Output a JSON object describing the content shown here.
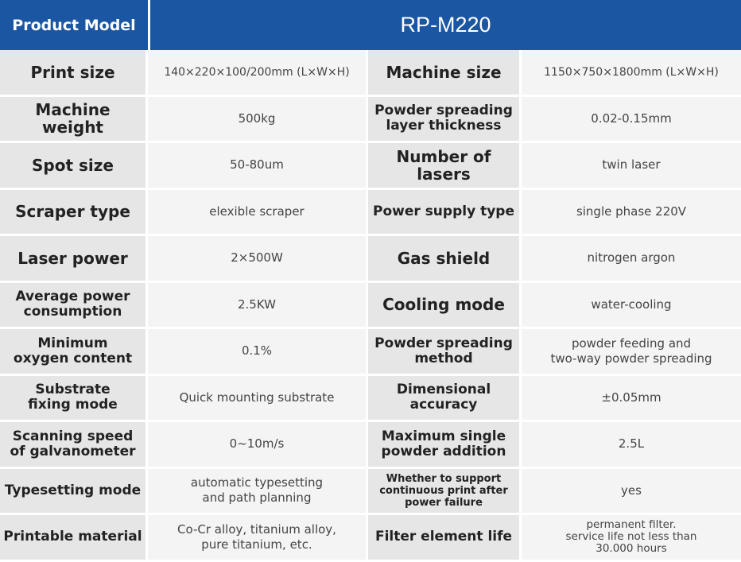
{
  "header": {
    "label": "Product Model",
    "model": "RP-M220"
  },
  "rows": [
    {
      "left_label": "Print size",
      "left_value": "140×220×100/200mm (L×W×H)",
      "right_label": "Machine size",
      "right_value": "1150×750×1800mm (L×W×H)"
    },
    {
      "left_label": "Machine weight",
      "left_value": "500kg",
      "right_label": "Powder spreading\nlayer thickness",
      "right_value": "0.02-0.15mm"
    },
    {
      "left_label": "Spot size",
      "left_value": "50-80um",
      "right_label": "Number of lasers",
      "right_value": "twin laser"
    },
    {
      "left_label": "Scraper type",
      "left_value": "elexible scraper",
      "right_label": "Power supply type",
      "right_value": "single phase 220V"
    },
    {
      "left_label": "Laser power",
      "left_value": "2×500W",
      "right_label": "Gas shield",
      "right_value": "nitrogen  argon"
    },
    {
      "left_label": "Average power\nconsumption",
      "left_value": "2.5KW",
      "right_label": "Cooling mode",
      "right_value": "water-cooling"
    },
    {
      "left_label": "Minimum\noxygen content",
      "left_value": "0.1%",
      "right_label": "Powder spreading\nmethod",
      "right_value": "powder feeding and\ntwo-way powder spreading"
    },
    {
      "left_label": "Substrate\nfixing mode",
      "left_value": "Quick mounting substrate",
      "right_label": "Dimensional\naccuracy",
      "right_value": "±0.05mm"
    },
    {
      "left_label": "Scanning speed\nof galvanometer",
      "left_value": "0~10m/s",
      "right_label": "Maximum single\npowder addition",
      "right_value": "2.5L"
    },
    {
      "left_label": "Typesetting mode",
      "left_value": "automatic typesetting\nand path planning",
      "right_label": "Whether to support\ncontinuous print after\npower failure",
      "right_value": "yes"
    },
    {
      "left_label": "Printable material",
      "left_value": "Co-Cr alloy, titanium alloy,\npure titanium, etc.",
      "right_label": "Filter element life",
      "right_value": "permanent filter.\nservice life not less than\n30.000 hours"
    }
  ]
}
